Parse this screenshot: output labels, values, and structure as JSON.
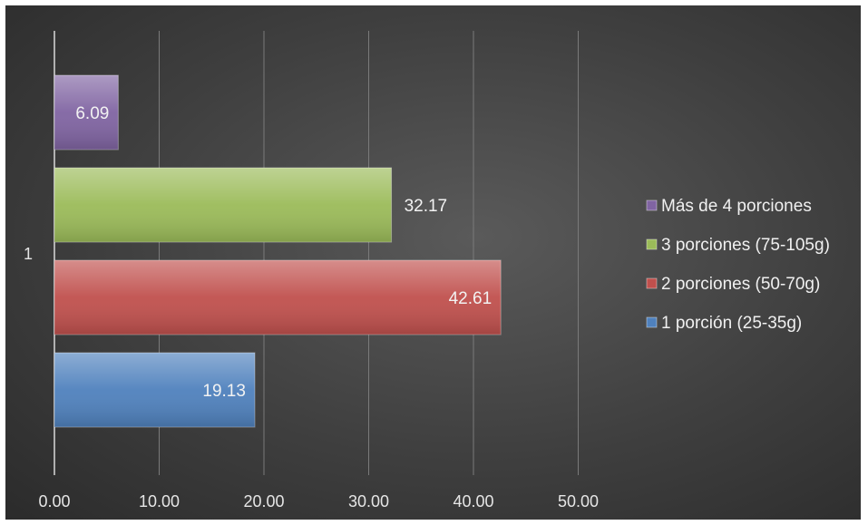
{
  "chart_data": {
    "type": "bar",
    "orientation": "horizontal",
    "category": "1",
    "xlim": [
      0,
      50
    ],
    "xticks": [
      "0.00",
      "10.00",
      "20.00",
      "30.00",
      "40.00",
      "50.00"
    ],
    "grid": true,
    "legend_position": "right",
    "series": [
      {
        "name": "1 porción (25-35g)",
        "value": 19.13,
        "label": "19.13",
        "color": "#4f81bd",
        "label_inside": true
      },
      {
        "name": "2 porciones (50-70g)",
        "value": 42.61,
        "label": "42.61",
        "color": "#c0504d",
        "label_inside": true
      },
      {
        "name": "3 porciones (75-105g)",
        "value": 32.17,
        "label": "32.17",
        "color": "#9bbb59",
        "label_inside": false
      },
      {
        "name": "Más de 4 porciones",
        "value": 6.09,
        "label": "6.09",
        "color": "#8064a2",
        "label_inside": true
      }
    ],
    "legend_order": [
      3,
      2,
      1,
      0
    ]
  }
}
